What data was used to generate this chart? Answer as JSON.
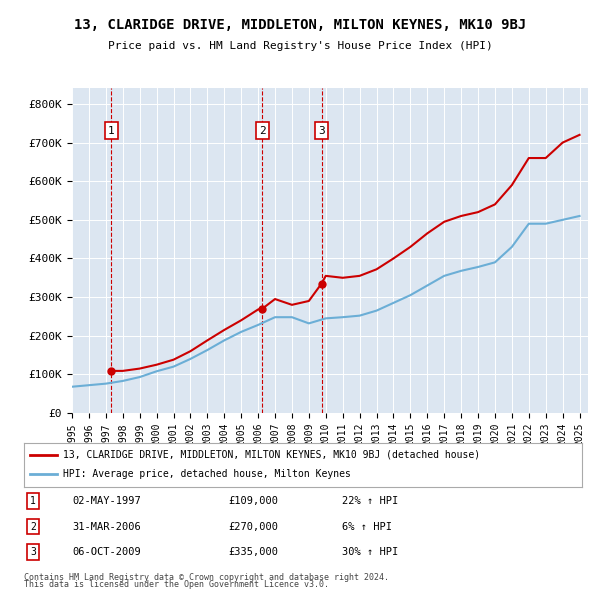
{
  "title": "13, CLARIDGE DRIVE, MIDDLETON, MILTON KEYNES, MK10 9BJ",
  "subtitle": "Price paid vs. HM Land Registry's House Price Index (HPI)",
  "legend_line1": "13, CLARIDGE DRIVE, MIDDLETON, MILTON KEYNES, MK10 9BJ (detached house)",
  "legend_line2": "HPI: Average price, detached house, Milton Keynes",
  "footer1": "Contains HM Land Registry data © Crown copyright and database right 2024.",
  "footer2": "This data is licensed under the Open Government Licence v3.0.",
  "sales": [
    {
      "num": 1,
      "date": "02-MAY-1997",
      "price": 109000,
      "pct": "22%",
      "year": 1997.33
    },
    {
      "num": 2,
      "date": "31-MAR-2006",
      "price": 270000,
      "pct": "6%",
      "year": 2006.25
    },
    {
      "num": 3,
      "date": "06-OCT-2009",
      "price": 335000,
      "pct": "30%",
      "year": 2009.75
    }
  ],
  "hpi_years": [
    1995,
    1996,
    1997,
    1998,
    1999,
    2000,
    2001,
    2002,
    2003,
    2004,
    2005,
    2006,
    2007,
    2008,
    2009,
    2010,
    2011,
    2012,
    2013,
    2014,
    2015,
    2016,
    2017,
    2018,
    2019,
    2020,
    2021,
    2022,
    2023,
    2024,
    2025
  ],
  "hpi_values": [
    68000,
    72000,
    76000,
    83000,
    93000,
    108000,
    120000,
    140000,
    163000,
    188000,
    210000,
    228000,
    248000,
    248000,
    232000,
    245000,
    248000,
    252000,
    265000,
    285000,
    305000,
    330000,
    355000,
    368000,
    378000,
    390000,
    430000,
    490000,
    490000,
    500000,
    510000
  ],
  "property_years": [
    1995,
    1996,
    1997,
    1997.33,
    1998,
    1999,
    2000,
    2001,
    2002,
    2003,
    2004,
    2005,
    2006,
    2006.25,
    2007,
    2008,
    2009,
    2009.75,
    2010,
    2011,
    2012,
    2013,
    2014,
    2015,
    2016,
    2017,
    2018,
    2019,
    2020,
    2021,
    2022,
    2023,
    2024,
    2025
  ],
  "property_values": [
    null,
    null,
    null,
    109000,
    109000,
    115000,
    125000,
    138000,
    160000,
    188000,
    215000,
    240000,
    268000,
    270000,
    295000,
    280000,
    290000,
    335000,
    355000,
    350000,
    355000,
    372000,
    400000,
    430000,
    465000,
    495000,
    510000,
    520000,
    540000,
    590000,
    660000,
    660000,
    700000,
    720000
  ],
  "xlim": [
    1995,
    2025.5
  ],
  "ylim": [
    0,
    840000
  ],
  "yticks": [
    0,
    100000,
    200000,
    300000,
    400000,
    500000,
    600000,
    700000,
    800000
  ],
  "ytick_labels": [
    "£0",
    "£100K",
    "£200K",
    "£300K",
    "£400K",
    "£500K",
    "£600K",
    "£700K",
    "£800K"
  ],
  "xtick_years": [
    1995,
    1996,
    1997,
    1998,
    1999,
    2000,
    2001,
    2002,
    2003,
    2004,
    2005,
    2006,
    2007,
    2008,
    2009,
    2010,
    2011,
    2012,
    2013,
    2014,
    2015,
    2016,
    2017,
    2018,
    2019,
    2020,
    2021,
    2022,
    2023,
    2024,
    2025
  ],
  "bg_color": "#dce6f1",
  "red_color": "#cc0000",
  "blue_color": "#6baed6",
  "marker_box_color": "#cc0000"
}
